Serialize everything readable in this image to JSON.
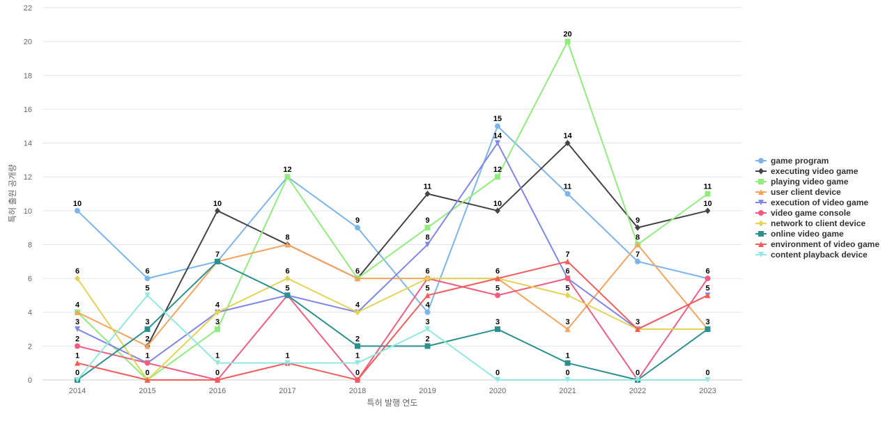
{
  "chart_data": {
    "type": "line",
    "title": "",
    "xlabel": "특허 발행 연도",
    "ylabel": "특허 출원 공개량",
    "categories": [
      "2014",
      "2015",
      "2016",
      "2017",
      "2018",
      "2019",
      "2020",
      "2021",
      "2022",
      "2023"
    ],
    "ylim": [
      0,
      22
    ],
    "yticks": [
      0,
      2,
      4,
      6,
      8,
      10,
      12,
      14,
      16,
      18,
      20,
      22
    ],
    "grid": true,
    "legend_position": "right",
    "series": [
      {
        "name": "game program",
        "values": [
          10,
          6,
          7,
          12,
          9,
          4,
          15,
          11,
          7,
          6
        ],
        "color": "#7cb5ec",
        "marker": "circle"
      },
      {
        "name": "executing video game",
        "values": [
          null,
          2,
          10,
          8,
          6,
          11,
          10,
          14,
          9,
          10
        ],
        "color": "#434348",
        "marker": "diamond"
      },
      {
        "name": "playing video game",
        "values": [
          4,
          0,
          3,
          12,
          6,
          9,
          12,
          20,
          8,
          11
        ],
        "color": "#90ed7d",
        "marker": "square"
      },
      {
        "name": "user client device",
        "values": [
          4,
          2,
          7,
          8,
          6,
          6,
          6,
          3,
          8,
          3
        ],
        "color": "#f7a35c",
        "marker": "triangle"
      },
      {
        "name": "execution of video game",
        "values": [
          3,
          1,
          4,
          5,
          4,
          8,
          14,
          6,
          3,
          5
        ],
        "color": "#8085e9",
        "marker": "triangle-down"
      },
      {
        "name": "video game console",
        "values": [
          2,
          1,
          0,
          5,
          0,
          6,
          5,
          6,
          0,
          6
        ],
        "color": "#f15c80",
        "marker": "circle"
      },
      {
        "name": "network to client device",
        "values": [
          6,
          0,
          4,
          6,
          4,
          6,
          6,
          5,
          3,
          3
        ],
        "color": "#e4d354",
        "marker": "diamond"
      },
      {
        "name": "online video game",
        "values": [
          0,
          3,
          7,
          5,
          2,
          2,
          3,
          1,
          0,
          3
        ],
        "color": "#2b908f",
        "marker": "square"
      },
      {
        "name": "environment of video game",
        "values": [
          1,
          0,
          0,
          1,
          0,
          5,
          6,
          7,
          3,
          5
        ],
        "color": "#f45b5b",
        "marker": "triangle"
      },
      {
        "name": "content playback device",
        "values": [
          0,
          5,
          1,
          1,
          1,
          3,
          0,
          0,
          0,
          0
        ],
        "color": "#91e8e1",
        "marker": "triangle-down"
      }
    ]
  }
}
